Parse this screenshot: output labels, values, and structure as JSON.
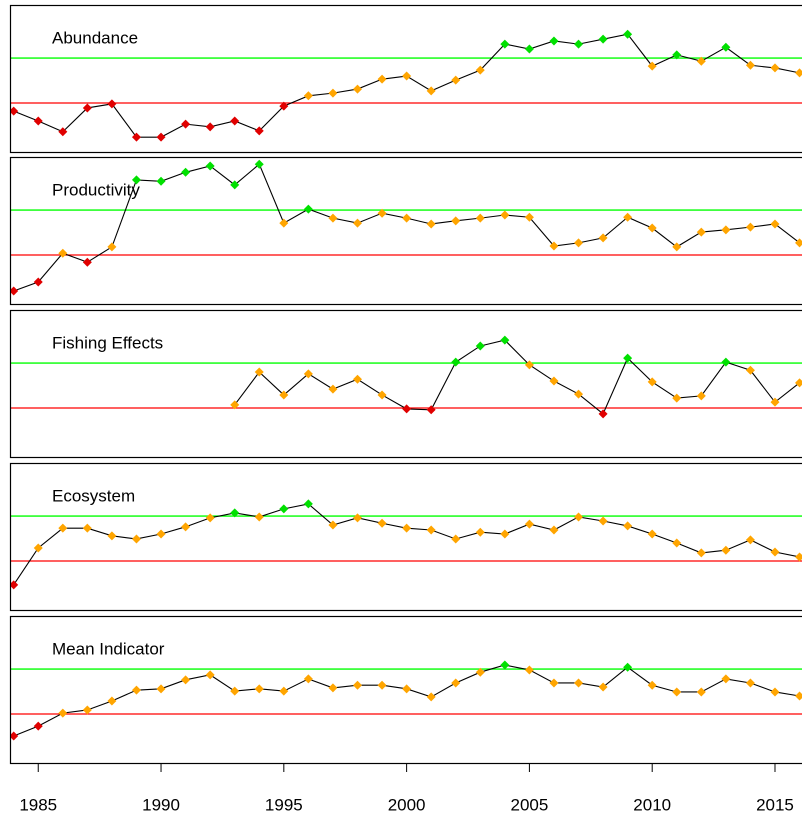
{
  "chart_data": [
    {
      "type": "line",
      "title": "Abundance",
      "xlim": [
        1983.85,
        2016.1
      ],
      "ylim": [
        -1.09,
        2.18
      ],
      "reference_lines": [
        {
          "value": 0,
          "color": "#ff0000"
        },
        {
          "value": 1,
          "color": "#00ff00"
        }
      ],
      "point_colors": {
        "below": "#e00000",
        "between": "#ffa500",
        "above": "#00e000"
      },
      "line_color": "#000000",
      "x": [
        1984,
        1985,
        1986,
        1987,
        1988,
        1989,
        1990,
        1991,
        1992,
        1993,
        1994,
        1995,
        1996,
        1997,
        1998,
        1999,
        2000,
        2001,
        2002,
        2003,
        2004,
        2005,
        2006,
        2007,
        2008,
        2009,
        2010,
        2011,
        2012,
        2013,
        2014,
        2015,
        2016
      ],
      "values": [
        -0.18,
        -0.4,
        -0.64,
        -0.11,
        -0.02,
        -0.76,
        -0.76,
        -0.47,
        -0.53,
        -0.4,
        -0.62,
        -0.07,
        0.16,
        0.22,
        0.31,
        0.53,
        0.6,
        0.27,
        0.51,
        0.73,
        1.31,
        1.2,
        1.38,
        1.31,
        1.42,
        1.53,
        0.82,
        1.07,
        0.93,
        1.24,
        0.84,
        0.78,
        0.67
      ]
    },
    {
      "type": "line",
      "title": "Productivity",
      "xlim": [
        1983.85,
        2016.1
      ],
      "ylim": [
        -1.09,
        2.18
      ],
      "reference_lines": [
        {
          "value": 0,
          "color": "#ff0000"
        },
        {
          "value": 1,
          "color": "#00ff00"
        }
      ],
      "point_colors": {
        "below": "#e00000",
        "between": "#ffa500",
        "above": "#00e000"
      },
      "line_color": "#000000",
      "x": [
        1984,
        1985,
        1986,
        1987,
        1988,
        1989,
        1990,
        1991,
        1992,
        1993,
        1994,
        1995,
        1996,
        1997,
        1998,
        1999,
        2000,
        2001,
        2002,
        2003,
        2004,
        2005,
        2006,
        2007,
        2008,
        2009,
        2010,
        2011,
        2012,
        2013,
        2014,
        2015,
        2016
      ],
      "values": [
        -0.8,
        -0.6,
        0.04,
        -0.16,
        0.18,
        1.67,
        1.64,
        1.84,
        1.98,
        1.56,
        2.02,
        0.71,
        1.02,
        0.82,
        0.71,
        0.93,
        0.82,
        0.69,
        0.76,
        0.82,
        0.89,
        0.84,
        0.2,
        0.27,
        0.38,
        0.84,
        0.6,
        0.18,
        0.51,
        0.56,
        0.62,
        0.69,
        0.27
      ]
    },
    {
      "type": "line",
      "title": "Fishing Effects",
      "xlim": [
        1983.85,
        2016.1
      ],
      "ylim": [
        -1.09,
        2.18
      ],
      "reference_lines": [
        {
          "value": 0,
          "color": "#ff0000"
        },
        {
          "value": 1,
          "color": "#00ff00"
        }
      ],
      "point_colors": {
        "below": "#e00000",
        "between": "#ffa500",
        "above": "#00e000"
      },
      "line_color": "#000000",
      "x": [
        1984,
        1985,
        1986,
        1987,
        1988,
        1989,
        1990,
        1991,
        1992,
        1993,
        1994,
        1995,
        1996,
        1997,
        1998,
        1999,
        2000,
        2001,
        2002,
        2003,
        2004,
        2005,
        2006,
        2007,
        2008,
        2009,
        2010,
        2011,
        2012,
        2013,
        2014,
        2015,
        2016
      ],
      "values": [
        null,
        null,
        null,
        null,
        null,
        null,
        null,
        null,
        null,
        0.07,
        0.8,
        0.29,
        0.76,
        0.42,
        0.64,
        0.29,
        -0.02,
        -0.04,
        1.02,
        1.38,
        1.51,
        0.96,
        0.6,
        0.31,
        -0.13,
        1.11,
        0.58,
        0.22,
        0.27,
        1.02,
        0.84,
        0.13,
        0.56
      ]
    },
    {
      "type": "line",
      "title": "Ecosystem",
      "xlim": [
        1983.85,
        2016.1
      ],
      "ylim": [
        -1.09,
        2.18
      ],
      "reference_lines": [
        {
          "value": 0,
          "color": "#ff0000"
        },
        {
          "value": 1,
          "color": "#00ff00"
        }
      ],
      "point_colors": {
        "below": "#e00000",
        "between": "#ffa500",
        "above": "#00e000"
      },
      "line_color": "#000000",
      "x": [
        1984,
        1985,
        1986,
        1987,
        1988,
        1989,
        1990,
        1991,
        1992,
        1993,
        1994,
        1995,
        1996,
        1997,
        1998,
        1999,
        2000,
        2001,
        2002,
        2003,
        2004,
        2005,
        2006,
        2007,
        2008,
        2009,
        2010,
        2011,
        2012,
        2013,
        2014,
        2015,
        2016
      ],
      "values": [
        -0.53,
        0.29,
        0.73,
        0.73,
        0.56,
        0.49,
        0.6,
        0.76,
        0.96,
        1.07,
        0.98,
        1.16,
        1.27,
        0.8,
        0.96,
        0.84,
        0.73,
        0.69,
        0.49,
        0.64,
        0.6,
        0.82,
        0.69,
        0.98,
        0.89,
        0.78,
        0.6,
        0.4,
        0.18,
        0.24,
        0.47,
        0.2,
        0.09
      ]
    },
    {
      "type": "line",
      "title": "Mean Indicator",
      "xlim": [
        1983.85,
        2016.1
      ],
      "ylim": [
        -1.09,
        2.18
      ],
      "reference_lines": [
        {
          "value": 0,
          "color": "#ff0000"
        },
        {
          "value": 1,
          "color": "#00ff00"
        }
      ],
      "point_colors": {
        "below": "#e00000",
        "between": "#ffa500",
        "above": "#00e000"
      },
      "line_color": "#000000",
      "x": [
        1984,
        1985,
        1986,
        1987,
        1988,
        1989,
        1990,
        1991,
        1992,
        1993,
        1994,
        1995,
        1996,
        1997,
        1998,
        1999,
        2000,
        2001,
        2002,
        2003,
        2004,
        2005,
        2006,
        2007,
        2008,
        2009,
        2010,
        2011,
        2012,
        2013,
        2014,
        2015,
        2016
      ],
      "values": [
        -0.49,
        -0.27,
        0.02,
        0.09,
        0.29,
        0.53,
        0.56,
        0.76,
        0.87,
        0.51,
        0.56,
        0.51,
        0.78,
        0.58,
        0.64,
        0.64,
        0.56,
        0.38,
        0.69,
        0.93,
        1.09,
        0.98,
        0.69,
        0.69,
        0.6,
        1.04,
        0.64,
        0.49,
        0.49,
        0.78,
        0.69,
        0.49,
        0.4
      ],
      "xticks": [
        1985,
        1990,
        1995,
        2000,
        2005,
        2010,
        2015
      ]
    }
  ]
}
